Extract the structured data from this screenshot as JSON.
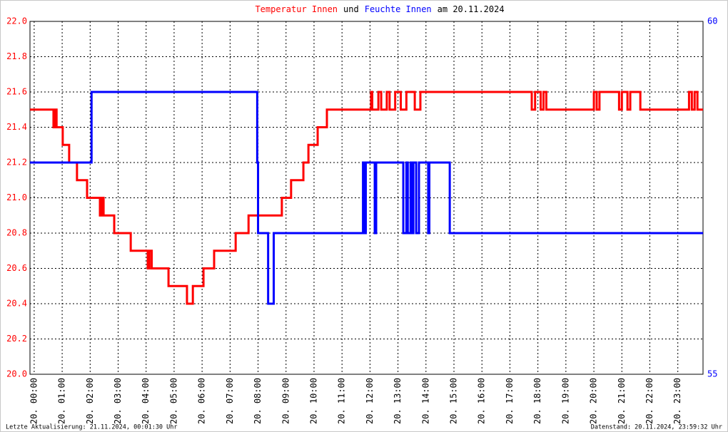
{
  "chart_data": {
    "type": "line",
    "title": [
      {
        "text": "Temperatur Innen",
        "color": "#ff0000"
      },
      {
        "text": "und",
        "color": "#000000"
      },
      {
        "text": "Feuchte Innen",
        "color": "#0000ff"
      },
      {
        "text": "am 20.11.2024",
        "color": "#000000"
      }
    ],
    "footer_left": "Letzte Aktualisierung: 21.11.2024, 00:01:30 Uhr",
    "footer_right": "Datenstand: 20.11.2024, 23:59:32 Uhr",
    "xlim": [
      -0.15,
      23.9
    ],
    "xticks": [
      {
        "value": 0,
        "label": "20. 00:00"
      },
      {
        "value": 1,
        "label": "20. 01:00"
      },
      {
        "value": 2,
        "label": "20. 02:00"
      },
      {
        "value": 3,
        "label": "20. 03:00"
      },
      {
        "value": 4,
        "label": "20. 04:00"
      },
      {
        "value": 5,
        "label": "20. 05:00"
      },
      {
        "value": 6,
        "label": "20. 06:00"
      },
      {
        "value": 7,
        "label": "20. 07:00"
      },
      {
        "value": 8,
        "label": "20. 08:00"
      },
      {
        "value": 9,
        "label": "20. 09:00"
      },
      {
        "value": 10,
        "label": "20. 10:00"
      },
      {
        "value": 11,
        "label": "20. 11:00"
      },
      {
        "value": 12,
        "label": "20. 12:00"
      },
      {
        "value": 13,
        "label": "20. 13:00"
      },
      {
        "value": 14,
        "label": "20. 14:00"
      },
      {
        "value": 15,
        "label": "20. 15:00"
      },
      {
        "value": 16,
        "label": "20. 16:00"
      },
      {
        "value": 17,
        "label": "20. 17:00"
      },
      {
        "value": 18,
        "label": "20. 18:00"
      },
      {
        "value": 19,
        "label": "20. 19:00"
      },
      {
        "value": 20,
        "label": "20. 20:00"
      },
      {
        "value": 21,
        "label": "20. 21:00"
      },
      {
        "value": 22,
        "label": "20. 22:00"
      },
      {
        "value": 23,
        "label": "20. 23:00"
      }
    ],
    "ylim": [
      20,
      22
    ],
    "yticks": [
      {
        "value": 20,
        "label": "20.0"
      },
      20.2,
      20.4,
      20.6,
      20.8,
      {
        "value": 21,
        "label": "21.0"
      },
      21.2,
      21.4,
      21.6,
      21.8,
      {
        "value": 22,
        "label": "22.0"
      }
    ],
    "y2lim": [
      55,
      60
    ],
    "y2ticks": [
      55,
      60
    ],
    "ytick_color": "#ff0000",
    "y2tick_color": "#0000ff",
    "grid": true,
    "series": [
      {
        "color": "#ff0000",
        "x": [
          -0.15,
          0.69,
          0.69,
          0.75,
          0.75,
          0.8,
          0.8,
          1.02,
          1.02,
          1.25,
          1.25,
          1.53,
          1.53,
          1.89,
          1.89,
          2.35,
          2.35,
          2.42,
          2.42,
          2.48,
          2.48,
          2.86,
          2.86,
          3.45,
          3.45,
          4.06,
          4.06,
          4.12,
          4.12,
          4.2,
          4.2,
          4.8,
          4.8,
          5.46,
          5.46,
          5.67,
          5.67,
          6.05,
          6.05,
          6.43,
          6.43,
          7.2,
          7.2,
          7.66,
          7.66,
          8.85,
          8.85,
          9.18,
          9.18,
          9.62,
          9.62,
          9.8,
          9.8,
          10.13,
          10.13,
          10.46,
          10.46,
          12.04,
          12.04,
          12.08,
          12.08,
          12.3,
          12.3,
          12.4,
          12.4,
          12.6,
          12.6,
          12.7,
          12.7,
          12.9,
          12.9,
          13.1,
          13.1,
          13.3,
          13.3,
          13.6,
          13.6,
          13.8,
          13.8,
          17.78,
          17.78,
          17.9,
          17.9,
          18.1,
          18.1,
          18.2,
          18.2,
          18.3,
          18.3,
          20.0,
          20.0,
          20.1,
          20.1,
          20.2,
          20.2,
          20.9,
          20.9,
          21.0,
          21.0,
          21.2,
          21.2,
          21.3,
          21.3,
          21.66,
          21.66,
          23.4,
          23.4,
          23.5,
          23.5,
          23.6,
          23.6,
          23.7,
          23.7,
          23.9
        ],
        "values": [
          21.5,
          21.5,
          21.4,
          21.4,
          21.5,
          21.5,
          21.4,
          21.4,
          21.3,
          21.3,
          21.2,
          21.2,
          21.1,
          21.1,
          21.0,
          21.0,
          20.9,
          20.9,
          21.0,
          21.0,
          20.9,
          20.9,
          20.8,
          20.8,
          20.7,
          20.7,
          20.6,
          20.6,
          20.7,
          20.7,
          20.6,
          20.6,
          20.5,
          20.5,
          20.4,
          20.4,
          20.5,
          20.5,
          20.6,
          20.6,
          20.7,
          20.7,
          20.8,
          20.8,
          20.9,
          20.9,
          21.0,
          21.0,
          21.1,
          21.1,
          21.2,
          21.2,
          21.3,
          21.3,
          21.4,
          21.4,
          21.5,
          21.5,
          21.6,
          21.6,
          21.5,
          21.5,
          21.6,
          21.6,
          21.5,
          21.5,
          21.6,
          21.6,
          21.5,
          21.5,
          21.6,
          21.6,
          21.5,
          21.5,
          21.6,
          21.6,
          21.5,
          21.5,
          21.6,
          21.6,
          21.5,
          21.5,
          21.6,
          21.6,
          21.5,
          21.5,
          21.6,
          21.6,
          21.5,
          21.5,
          21.6,
          21.6,
          21.5,
          21.5,
          21.6,
          21.6,
          21.5,
          21.5,
          21.6,
          21.6,
          21.5,
          21.5,
          21.6,
          21.6,
          21.5,
          21.5,
          21.6,
          21.6,
          21.5,
          21.5,
          21.6,
          21.6,
          21.5,
          21.5
        ]
      },
      {
        "color": "#0000ff",
        "axis": "y2",
        "x": [
          -0.15,
          2.05,
          2.05,
          7.97,
          7.97,
          8.0,
          8.0,
          8.36,
          8.36,
          8.56,
          8.56,
          11.75,
          11.75,
          11.8,
          11.8,
          11.85,
          11.85,
          12.17,
          12.17,
          12.22,
          12.22,
          13.19,
          13.19,
          13.3,
          13.3,
          13.35,
          13.35,
          13.45,
          13.45,
          13.5,
          13.5,
          13.55,
          13.55,
          13.65,
          13.65,
          13.75,
          13.75,
          14.08,
          14.08,
          14.12,
          14.12,
          14.85,
          14.85,
          23.9
        ],
        "values": [
          58,
          58,
          59,
          59,
          58,
          58,
          57,
          57,
          56,
          56,
          57,
          57,
          58,
          58,
          57,
          57,
          58,
          58,
          57,
          57,
          58,
          58,
          57,
          57,
          58,
          58,
          57,
          57,
          58,
          58,
          57,
          57,
          58,
          58,
          57,
          57,
          58,
          58,
          57,
          57,
          58,
          58,
          57,
          57
        ]
      }
    ]
  }
}
